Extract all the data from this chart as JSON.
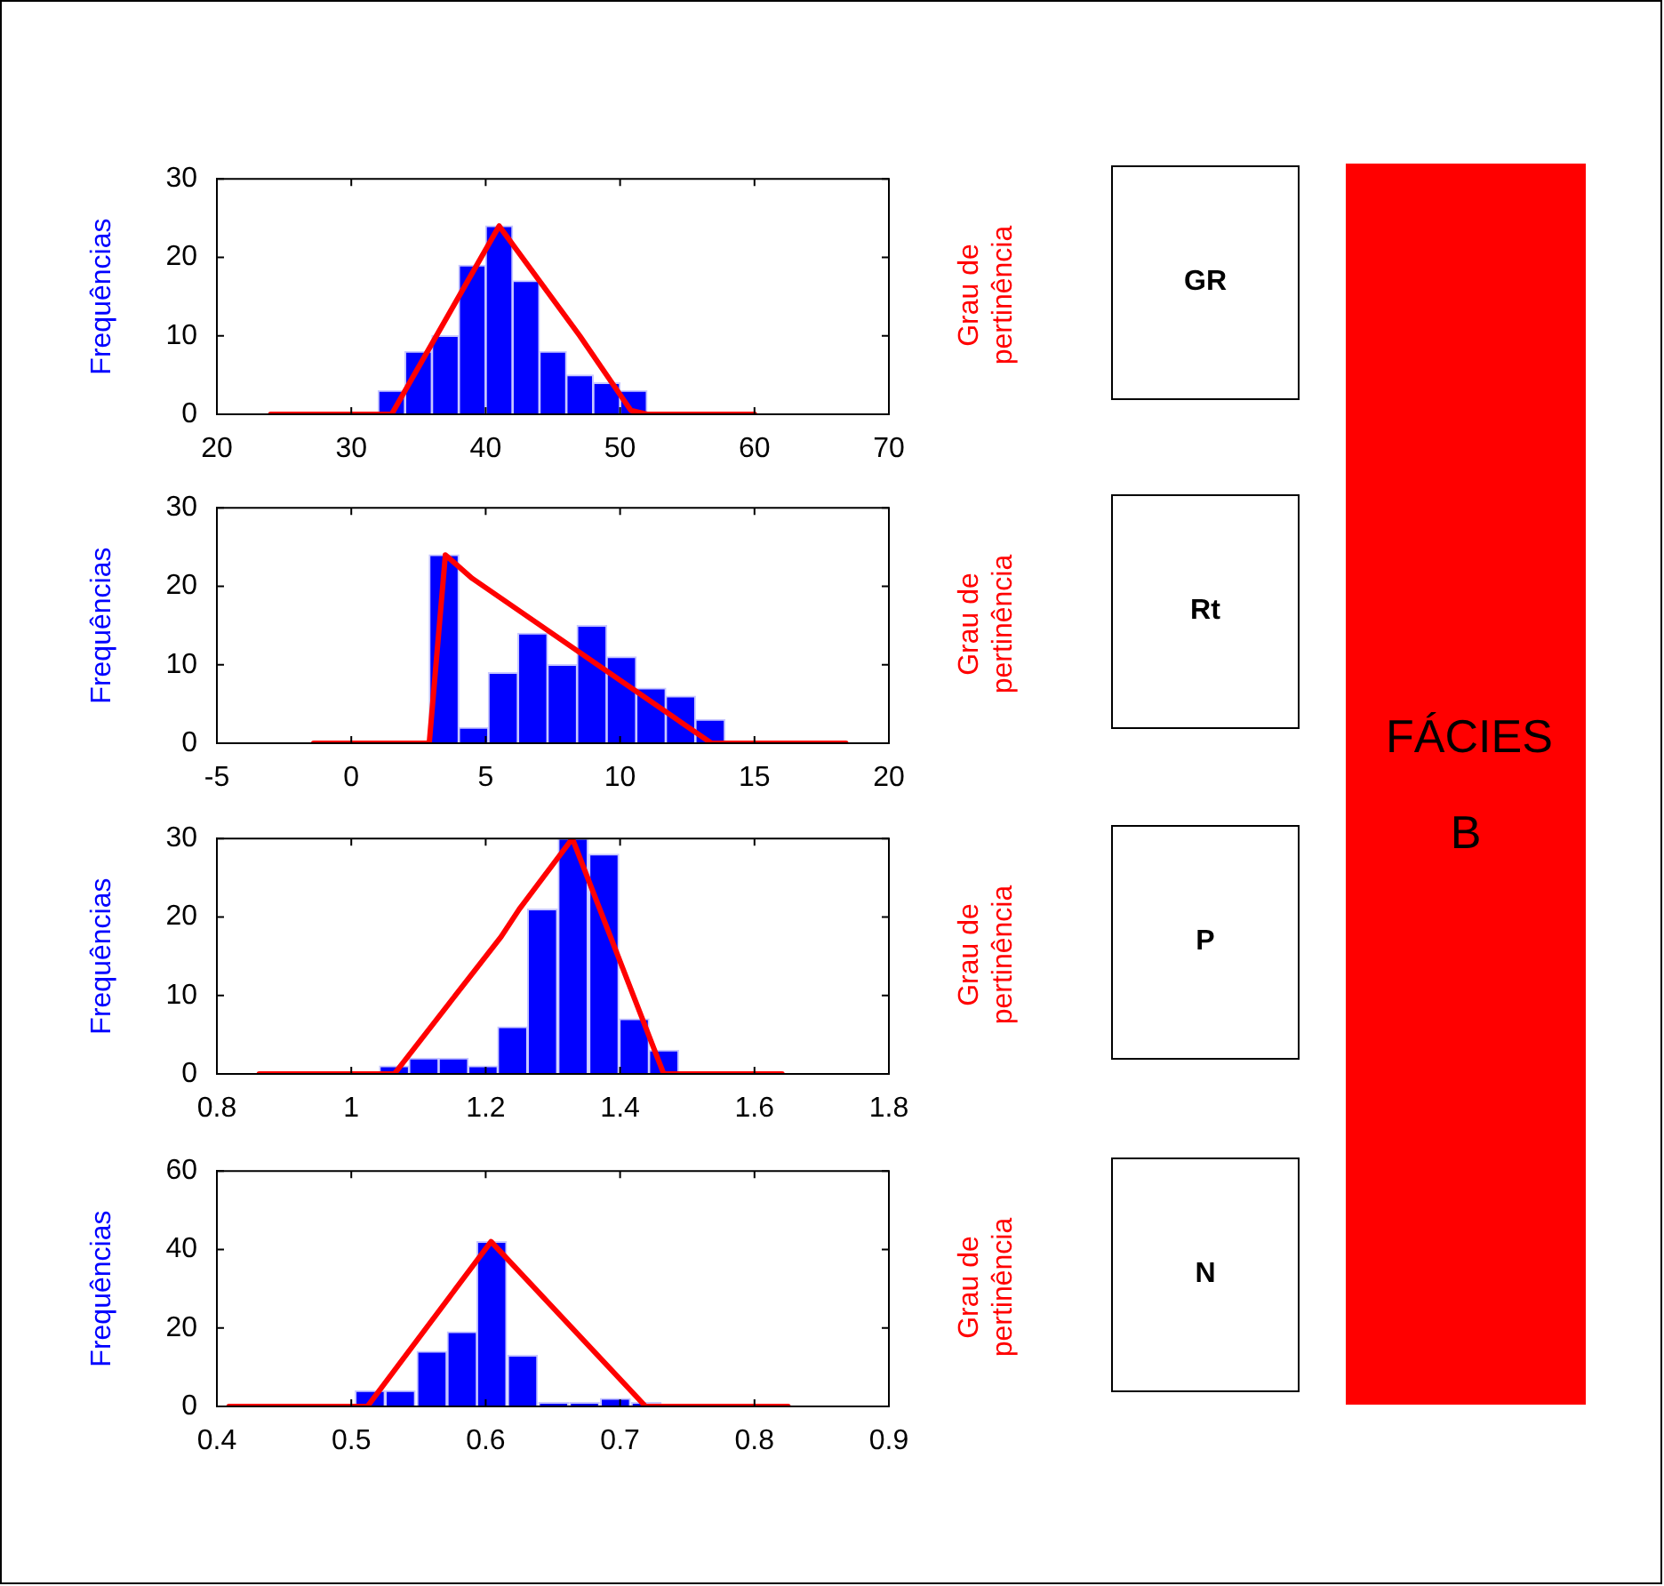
{
  "chart_data": [
    {
      "type": "histogram",
      "ylabel": "Frequências",
      "y2label": "Grau de pertinência",
      "annotations": [
        "GR"
      ],
      "xlim": [
        20,
        70
      ],
      "xticks": [
        20,
        30,
        40,
        50,
        60,
        70
      ],
      "ylim": [
        0,
        30
      ],
      "yticks": [
        0,
        10,
        20,
        30
      ],
      "series": [
        {
          "type": "histogram",
          "color": "#0000ff",
          "bins": [
            32,
            34,
            36,
            38,
            40,
            42,
            44,
            46,
            48,
            50,
            52
          ],
          "values": [
            3,
            8,
            10,
            19,
            24,
            17,
            8,
            5,
            4,
            3
          ]
        },
        {
          "type": "line",
          "color": "#ff0000",
          "x": [
            24,
            33,
            41,
            47,
            50.8,
            52,
            60
          ],
          "values": [
            0,
            0,
            24,
            10,
            0.5,
            0,
            0
          ]
        }
      ]
    },
    {
      "type": "histogram",
      "ylabel": "Frequências",
      "y2label": "Grau de pertinência",
      "annotations": [
        "Rt"
      ],
      "xlim": [
        -5,
        20
      ],
      "xticks": [
        -5,
        0,
        5,
        10,
        15,
        20
      ],
      "ylim": [
        0,
        30
      ],
      "yticks": [
        0,
        10,
        20,
        30
      ],
      "series": [
        {
          "type": "histogram",
          "color": "#0000ff",
          "bins": [
            2.9,
            4.0,
            5.1,
            6.2,
            7.3,
            8.4,
            9.5,
            10.6,
            11.7,
            12.8,
            13.9
          ],
          "values": [
            24,
            2,
            9,
            14,
            10,
            15,
            11,
            7,
            6,
            3
          ]
        },
        {
          "type": "line",
          "color": "#ff0000",
          "x": [
            -1.4,
            2.9,
            3.5,
            4.5,
            13.4,
            18.4
          ],
          "values": [
            0,
            0,
            24,
            21,
            0,
            0
          ]
        }
      ]
    },
    {
      "type": "histogram",
      "ylabel": "Frequências",
      "y2label": "Grau de pertinência",
      "annotations": [
        "P"
      ],
      "xlim": [
        0.8,
        1.8
      ],
      "xticks": [
        0.8,
        1,
        1.2,
        1.4,
        1.6,
        1.8
      ],
      "ylim": [
        0,
        30
      ],
      "yticks": [
        0,
        10,
        20,
        30
      ],
      "series": [
        {
          "type": "histogram",
          "color": "#0000ff",
          "bins": [
            1.042,
            1.086,
            1.13,
            1.174,
            1.218,
            1.262,
            1.307,
            1.353,
            1.399,
            1.443,
            1.487
          ],
          "values": [
            1,
            2,
            2,
            1,
            6,
            21,
            30,
            28,
            7,
            3
          ]
        },
        {
          "type": "line",
          "color": "#ff0000",
          "x": [
            0.863,
            1.064,
            1.223,
            1.25,
            1.329,
            1.465,
            1.641
          ],
          "values": [
            0,
            0,
            17.5,
            21,
            30,
            0,
            0
          ]
        }
      ]
    },
    {
      "type": "histogram",
      "ylabel": "Frequências",
      "y2label": "Grau de pertinência",
      "annotations": [
        "N"
      ],
      "xlim": [
        0.4,
        0.9
      ],
      "xticks": [
        0.4,
        0.5,
        0.6,
        0.7,
        0.8,
        0.9
      ],
      "ylim": [
        0,
        60
      ],
      "yticks": [
        0,
        20,
        40,
        60
      ],
      "series": [
        {
          "type": "histogram",
          "color": "#0000ff",
          "bins": [
            0.503,
            0.525,
            0.548,
            0.572,
            0.593,
            0.616,
            0.639,
            0.662,
            0.685,
            0.708,
            0.731
          ],
          "values": [
            4,
            4,
            14,
            19,
            42,
            13,
            1,
            1,
            2,
            1
          ]
        },
        {
          "type": "line",
          "color": "#ff0000",
          "x": [
            0.409,
            0.512,
            0.604,
            0.719,
            0.825
          ],
          "values": [
            0,
            0,
            42,
            0,
            0
          ]
        }
      ]
    },
    {
      "type": "other",
      "title": "FÁCIES B"
    }
  ]
}
